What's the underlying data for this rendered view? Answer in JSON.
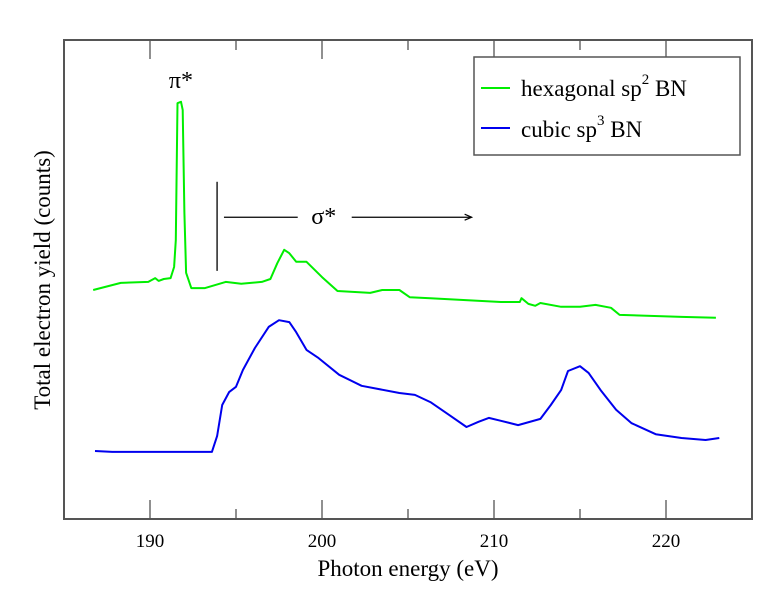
{
  "chart_data": {
    "type": "line",
    "title": "",
    "xlabel": "Photon energy (eV)",
    "ylabel": "Total electron yield (counts)",
    "xlim": [
      185,
      225
    ],
    "ylim": [
      0,
      100
    ],
    "xticks": [
      190,
      200,
      210,
      220
    ],
    "xtick_labels": [
      "190",
      "200",
      "210",
      "220"
    ],
    "xminor_ticks": [
      195,
      205,
      215
    ],
    "grid": false,
    "legend_position": "top-right",
    "series": [
      {
        "name": "hexagonal sp2 BN",
        "legend_text": "hexagonal sp",
        "legend_sup": "2",
        "legend_suffix": " BN",
        "color": "#00ee00",
        "x": [
          186.7,
          188.3,
          189.9,
          190.3,
          190.5,
          190.8,
          191.2,
          191.4,
          191.5,
          191.6,
          191.8,
          191.9,
          192.0,
          192.1,
          192.4,
          193.2,
          194.4,
          195.3,
          196.5,
          197.0,
          197.4,
          197.8,
          198.1,
          198.5,
          199.1,
          200.0,
          200.9,
          202.8,
          203.5,
          204.5,
          205.1,
          206.3,
          210.4,
          211.5,
          211.6,
          212.0,
          212.4,
          212.7,
          213.9,
          215.0,
          215.9,
          216.8,
          217.3,
          220.9,
          222.9
        ],
        "y": [
          47.8,
          49.3,
          49.5,
          50.3,
          49.7,
          50.1,
          50.3,
          52.6,
          58.2,
          86.8,
          87.1,
          85.4,
          63.9,
          51.4,
          48.2,
          48.2,
          49.5,
          49.1,
          49.5,
          50.1,
          53.4,
          56.2,
          55.5,
          53.7,
          53.7,
          50.5,
          47.6,
          47.2,
          47.8,
          47.8,
          46.3,
          46.1,
          45.3,
          45.3,
          46.1,
          44.9,
          44.5,
          45.1,
          44.3,
          44.3,
          44.7,
          44.1,
          42.6,
          42.2,
          42.0
        ]
      },
      {
        "name": "cubic sp3 BN",
        "legend_text": "cubic sp",
        "legend_sup": "3",
        "legend_suffix": " BN",
        "color": "#0000ee",
        "x": [
          186.8,
          187.8,
          193.6,
          193.9,
          194.2,
          194.6,
          195.0,
          195.4,
          196.1,
          196.9,
          197.5,
          198.1,
          198.5,
          199.1,
          199.8,
          201.0,
          202.3,
          204.5,
          205.4,
          206.3,
          207.4,
          208.4,
          209.1,
          209.7,
          210.4,
          211.4,
          212.7,
          213.3,
          213.9,
          214.3,
          215.0,
          215.5,
          216.2,
          217.1,
          218.0,
          219.4,
          220.9,
          222.3,
          223.1
        ],
        "y": [
          14.2,
          14.0,
          14.0,
          17.3,
          23.8,
          26.5,
          27.6,
          31.1,
          35.7,
          40.1,
          41.5,
          41.1,
          39.0,
          35.3,
          33.6,
          30.1,
          27.8,
          26.3,
          25.9,
          24.4,
          21.7,
          19.2,
          20.3,
          21.1,
          20.5,
          19.6,
          20.9,
          23.8,
          26.9,
          30.9,
          31.9,
          30.5,
          26.9,
          22.8,
          20.0,
          17.7,
          16.9,
          16.5,
          16.9
        ]
      }
    ],
    "annotations": {
      "pi_star": {
        "text": "π*",
        "x": 191.8,
        "y": 90
      },
      "sigma_star": {
        "text": "σ*",
        "x_start": 194.3,
        "x_end": 208.7,
        "y": 63,
        "text_x": 200.1,
        "marker_x": 193.9,
        "marker_y": [
          51.8,
          70.4
        ]
      }
    }
  }
}
